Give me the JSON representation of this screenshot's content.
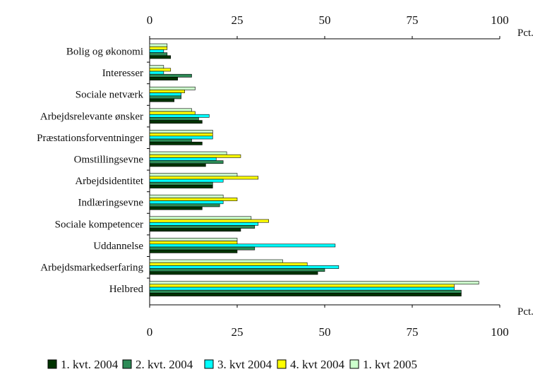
{
  "chart_data": {
    "type": "bar",
    "orientation": "horizontal",
    "unit_label": "Pct.",
    "xlim": [
      0,
      100
    ],
    "xticks": [
      0,
      25,
      50,
      75,
      100
    ],
    "grid": false,
    "legend_position": "bottom",
    "categories": [
      "Bolig og økonomi",
      "Interesser",
      "Sociale netværk",
      "Arbejdsrelevante ønsker",
      "Præstationsforventninger",
      "Omstillingsevne",
      "Arbejdsidentitet",
      "Indlæringsevne",
      "Sociale kompetencer",
      "Uddannelse",
      "Arbejdsmarkedserfaring",
      "Helbred"
    ],
    "series": [
      {
        "name": "1. kvt. 2004",
        "color": "#003300",
        "values": [
          6,
          8,
          7,
          15,
          15,
          16,
          18,
          15,
          26,
          25,
          48,
          89
        ]
      },
      {
        "name": "2. kvt. 2004",
        "color": "#2e8b57",
        "values": [
          5,
          12,
          9,
          14,
          12,
          21,
          18,
          20,
          30,
          30,
          50,
          89
        ]
      },
      {
        "name": "3. kvt 2004",
        "color": "#00ffff",
        "values": [
          4,
          4,
          9,
          17,
          18,
          19,
          21,
          21,
          31,
          53,
          54,
          87
        ]
      },
      {
        "name": "4. kvt 2004",
        "color": "#ffff00",
        "values": [
          5,
          6,
          10,
          13,
          18,
          26,
          31,
          25,
          34,
          25,
          45,
          87
        ]
      },
      {
        "name": "1. kvt 2005",
        "color": "#ccffcc",
        "values": [
          5,
          4,
          13,
          12,
          18,
          22,
          25,
          21,
          29,
          25,
          38,
          94
        ]
      }
    ]
  }
}
